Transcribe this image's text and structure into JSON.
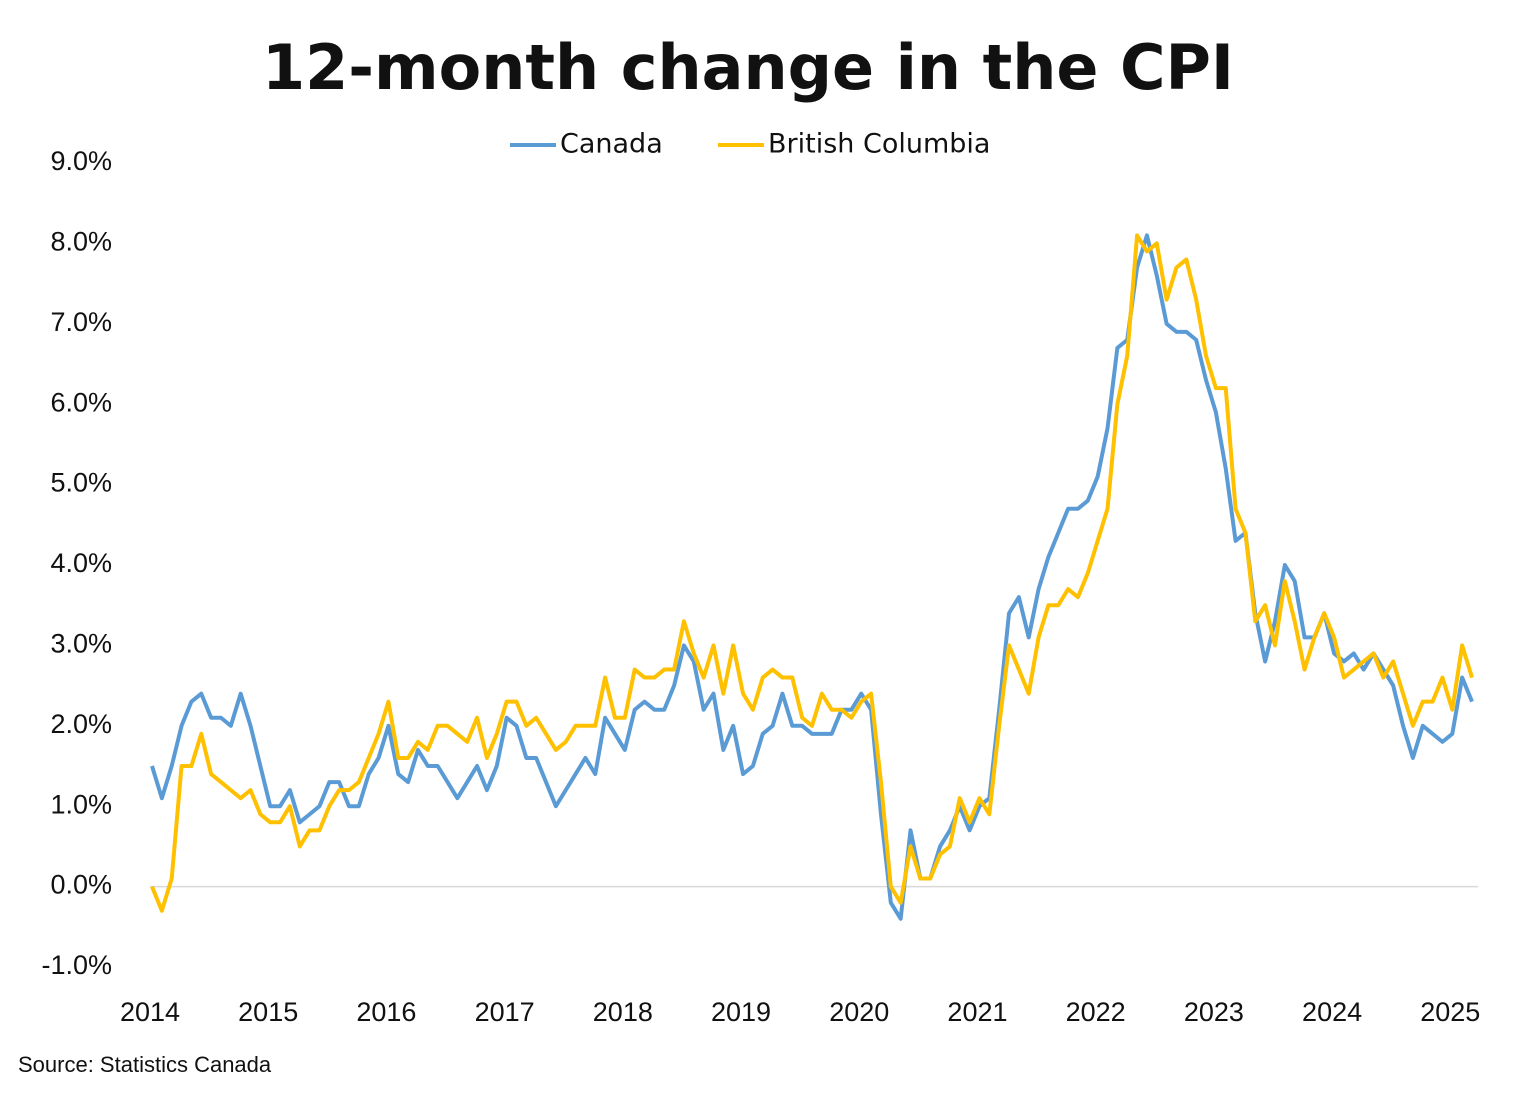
{
  "chart_data": {
    "type": "line",
    "title": "12-month change in the CPI",
    "source": "Source: Statistics Canada",
    "categories": [
      "2014",
      null,
      null,
      null,
      null,
      null,
      null,
      null,
      null,
      null,
      null,
      null,
      "2015",
      null,
      null,
      null,
      null,
      null,
      null,
      null,
      null,
      null,
      null,
      null,
      "2016",
      null,
      null,
      null,
      null,
      null,
      null,
      null,
      null,
      null,
      null,
      null,
      "2017",
      null,
      null,
      null,
      null,
      null,
      null,
      null,
      null,
      null,
      null,
      null,
      "2018",
      null,
      null,
      null,
      null,
      null,
      null,
      null,
      null,
      null,
      null,
      null,
      "2019",
      null,
      null,
      null,
      null,
      null,
      null,
      null,
      null,
      null,
      null,
      null,
      "2020",
      null,
      null,
      null,
      null,
      null,
      null,
      null,
      null,
      null,
      null,
      null,
      "2021",
      null,
      null,
      null,
      null,
      null,
      null,
      null,
      null,
      null,
      null,
      null,
      "2022",
      null,
      null,
      null,
      null,
      null,
      null,
      null,
      null,
      null,
      null,
      null,
      "2023",
      null,
      null,
      null,
      null,
      null,
      null,
      null,
      null,
      null,
      null,
      null,
      "2024",
      null,
      null,
      null,
      null,
      null,
      null,
      null,
      null,
      null,
      null,
      null,
      "2025",
      null,
      null
    ],
    "series": [
      {
        "name": "Canada",
        "color": "#5b9bd5",
        "values": [
          1.5,
          1.1,
          1.5,
          2.0,
          2.3,
          2.4,
          2.1,
          2.1,
          2.0,
          2.4,
          2.0,
          1.5,
          1.0,
          1.0,
          1.2,
          0.8,
          0.9,
          1.0,
          1.3,
          1.3,
          1.0,
          1.0,
          1.4,
          1.6,
          2.0,
          1.4,
          1.3,
          1.7,
          1.5,
          1.5,
          1.3,
          1.1,
          1.3,
          1.5,
          1.2,
          1.5,
          2.1,
          2.0,
          1.6,
          1.6,
          1.3,
          1.0,
          1.2,
          1.4,
          1.6,
          1.4,
          2.1,
          1.9,
          1.7,
          2.2,
          2.3,
          2.2,
          2.2,
          2.5,
          3.0,
          2.8,
          2.2,
          2.4,
          1.7,
          2.0,
          1.4,
          1.5,
          1.9,
          2.0,
          2.4,
          2.0,
          2.0,
          1.9,
          1.9,
          1.9,
          2.2,
          2.2,
          2.4,
          2.2,
          0.9,
          -0.2,
          -0.4,
          0.7,
          0.1,
          0.1,
          0.5,
          0.7,
          1.0,
          0.7,
          1.0,
          1.1,
          2.2,
          3.4,
          3.6,
          3.1,
          3.7,
          4.1,
          4.4,
          4.7,
          4.7,
          4.8,
          5.1,
          5.7,
          6.7,
          6.8,
          7.7,
          8.1,
          7.6,
          7.0,
          6.9,
          6.9,
          6.8,
          6.3,
          5.9,
          5.2,
          4.3,
          4.4,
          3.4,
          2.8,
          3.3,
          4.0,
          3.8,
          3.1,
          3.1,
          3.4,
          2.9,
          2.8,
          2.9,
          2.7,
          2.9,
          2.7,
          2.5,
          2.0,
          1.6,
          2.0,
          1.9,
          1.8,
          1.9,
          2.6,
          2.3
        ]
      },
      {
        "name": "British Columbia",
        "color": "#ffc000",
        "values": [
          0.0,
          -0.3,
          0.1,
          1.5,
          1.5,
          1.9,
          1.4,
          1.3,
          1.2,
          1.1,
          1.2,
          0.9,
          0.8,
          0.8,
          1.0,
          0.5,
          0.7,
          0.7,
          1.0,
          1.2,
          1.2,
          1.3,
          1.6,
          1.9,
          2.3,
          1.6,
          1.6,
          1.8,
          1.7,
          2.0,
          2.0,
          1.9,
          1.8,
          2.1,
          1.6,
          1.9,
          2.3,
          2.3,
          2.0,
          2.1,
          1.9,
          1.7,
          1.8,
          2.0,
          2.0,
          2.0,
          2.6,
          2.1,
          2.1,
          2.7,
          2.6,
          2.6,
          2.7,
          2.7,
          3.3,
          2.9,
          2.6,
          3.0,
          2.4,
          3.0,
          2.4,
          2.2,
          2.6,
          2.7,
          2.6,
          2.6,
          2.1,
          2.0,
          2.4,
          2.2,
          2.2,
          2.1,
          2.3,
          2.4,
          1.3,
          0.0,
          -0.2,
          0.5,
          0.1,
          0.1,
          0.4,
          0.5,
          1.1,
          0.8,
          1.1,
          0.9,
          2.0,
          3.0,
          2.7,
          2.4,
          3.1,
          3.5,
          3.5,
          3.7,
          3.6,
          3.9,
          4.3,
          4.7,
          6.0,
          6.6,
          8.1,
          7.9,
          8.0,
          7.3,
          7.7,
          7.8,
          7.3,
          6.6,
          6.2,
          6.2,
          4.7,
          4.4,
          3.3,
          3.5,
          3.0,
          3.8,
          3.3,
          2.7,
          3.1,
          3.4,
          3.1,
          2.6,
          2.7,
          2.8,
          2.9,
          2.6,
          2.8,
          2.4,
          2.0,
          2.3,
          2.3,
          2.6,
          2.2,
          3.0,
          2.6
        ]
      }
    ],
    "ylim": [
      -1,
      9
    ],
    "yticks": [
      {
        "value": -1,
        "label": "-1.0%"
      },
      {
        "value": 0,
        "label": "0.0%"
      },
      {
        "value": 1,
        "label": "1.0%"
      },
      {
        "value": 2,
        "label": "2.0%"
      },
      {
        "value": 3,
        "label": "3.0%"
      },
      {
        "value": 4,
        "label": "4.0%"
      },
      {
        "value": 5,
        "label": "5.0%"
      },
      {
        "value": 6,
        "label": "6.0%"
      },
      {
        "value": 7,
        "label": "7.0%"
      },
      {
        "value": 8,
        "label": "8.0%"
      },
      {
        "value": 9,
        "label": "9.0%"
      }
    ],
    "grid": false,
    "legend": "top"
  }
}
